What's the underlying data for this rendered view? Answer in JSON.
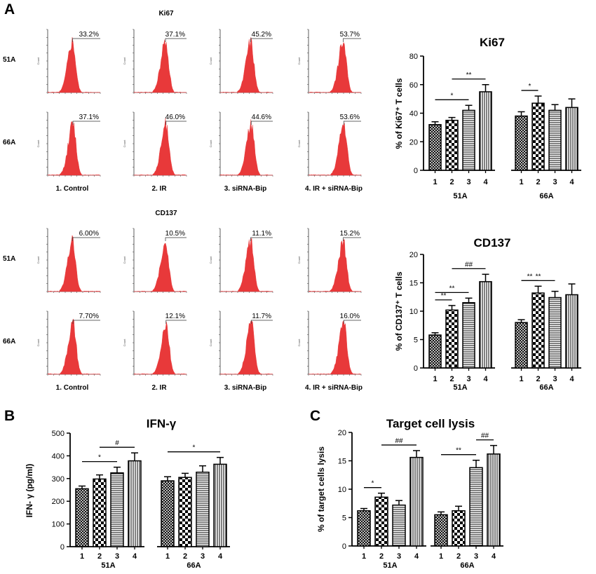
{
  "panel_labels": {
    "A": "A",
    "B": "B",
    "C": "C"
  },
  "histogram_panels": [
    {
      "title": "Ki67",
      "row_labels": [
        "51A",
        "66A"
      ],
      "column_labels": [
        "1. Control",
        "2. IR",
        "3. siRNA-Bip",
        "4. IR + siRNA-Bip"
      ],
      "percentages": [
        [
          "33.2%",
          "37.1%",
          "45.2%",
          "53.7%"
        ],
        [
          "37.1%",
          "46.0%",
          "44.6%",
          "53.6%"
        ]
      ],
      "axis_word": "Count"
    },
    {
      "title": "CD137",
      "row_labels": [
        "51A",
        "66A"
      ],
      "column_labels": [
        "1. Control",
        "2. IR",
        "3. siRNA-Bip",
        "4. IR + siRNA-Bip"
      ],
      "percentages": [
        [
          "6.00%",
          "10.5%",
          "11.1%",
          "15.2%"
        ],
        [
          "7.70%",
          "12.1%",
          "11.7%",
          "16.0%"
        ]
      ],
      "axis_word": "Count"
    }
  ],
  "histogram_color": "#e8393a",
  "chart_data": [
    {
      "id": "ki67",
      "type": "bar",
      "title": "Ki67",
      "ylabel": "% of  Ki67⁺ T cells",
      "xlabel": "",
      "ylim": [
        0,
        80
      ],
      "yticks": [
        0,
        20,
        40,
        60,
        80
      ],
      "groups": [
        {
          "label": "51A",
          "categories": [
            "1",
            "2",
            "3",
            "4"
          ],
          "values": [
            32,
            35,
            42,
            55
          ],
          "errors": [
            2,
            2,
            3.5,
            5
          ]
        },
        {
          "label": "66A",
          "categories": [
            "1",
            "2",
            "3",
            "4"
          ],
          "values": [
            38,
            47,
            42,
            44
          ],
          "errors": [
            3,
            5,
            4,
            6
          ]
        }
      ],
      "annotations": [
        {
          "text": "*",
          "group": 0,
          "from": 0,
          "to": 2
        },
        {
          "text": "**",
          "group": 0,
          "from": 1,
          "to": 3
        },
        {
          "text": "*",
          "group": 1,
          "from": 0,
          "to": 1
        }
      ]
    },
    {
      "id": "cd137",
      "type": "bar",
      "title": "CD137",
      "ylabel": "% of CD137⁺ T cells",
      "xlabel": "",
      "ylim": [
        0,
        20
      ],
      "yticks": [
        0,
        5,
        10,
        15,
        20
      ],
      "groups": [
        {
          "label": "51A",
          "categories": [
            "1",
            "2",
            "3",
            "4"
          ],
          "values": [
            5.8,
            10.2,
            11.5,
            15.2
          ],
          "errors": [
            0.4,
            0.8,
            0.8,
            1.3
          ]
        },
        {
          "label": "66A",
          "categories": [
            "1",
            "2",
            "3",
            "4"
          ],
          "values": [
            8.0,
            13.2,
            12.4,
            12.9
          ],
          "errors": [
            0.5,
            1.2,
            1.1,
            1.9
          ]
        }
      ],
      "annotations": [
        {
          "text": "**",
          "group": 0,
          "from": 0,
          "to": 1
        },
        {
          "text": "**",
          "group": 0,
          "from": 0,
          "to": 2
        },
        {
          "text": "##",
          "group": 0,
          "from": 1,
          "to": 3
        },
        {
          "text": "**",
          "group": 1,
          "from": 0,
          "to": 1
        },
        {
          "text": "**",
          "group": 1,
          "from": 0,
          "to": 2
        }
      ]
    },
    {
      "id": "ifng",
      "type": "bar",
      "title": "IFN-γ",
      "ylabel": "IFN- γ  (pg/ml)",
      "xlabel": "",
      "ylim": [
        0,
        500
      ],
      "yticks": [
        0,
        100,
        200,
        300,
        400,
        500
      ],
      "groups": [
        {
          "label": "51A",
          "categories": [
            "1",
            "2",
            "3",
            "4"
          ],
          "values": [
            255,
            298,
            325,
            378
          ],
          "errors": [
            12,
            18,
            25,
            35
          ]
        },
        {
          "label": "66A",
          "categories": [
            "1",
            "2",
            "3",
            "4"
          ],
          "values": [
            290,
            305,
            328,
            363
          ],
          "errors": [
            18,
            18,
            28,
            30
          ]
        }
      ],
      "annotations": [
        {
          "text": "*",
          "group": 0,
          "from": 0,
          "to": 2
        },
        {
          "text": "#",
          "group": 0,
          "from": 1,
          "to": 3
        },
        {
          "text": "*",
          "group": 1,
          "from": 0,
          "to": 3
        }
      ]
    },
    {
      "id": "lysis",
      "type": "bar",
      "title": "Target cell lysis",
      "ylabel": "% of target cells lysis",
      "xlabel": "",
      "ylim": [
        0,
        20
      ],
      "yticks": [
        0,
        5,
        10,
        15,
        20
      ],
      "groups": [
        {
          "label": "51A",
          "categories": [
            "1",
            "2",
            "3",
            "4"
          ],
          "values": [
            6.2,
            8.6,
            7.2,
            15.6
          ],
          "errors": [
            0.4,
            0.7,
            0.8,
            1.2
          ]
        },
        {
          "label": "66A",
          "categories": [
            "1",
            "2",
            "3",
            "4"
          ],
          "values": [
            5.5,
            6.2,
            13.8,
            16.2
          ],
          "errors": [
            0.5,
            0.8,
            1.3,
            1.5
          ]
        }
      ],
      "annotations": [
        {
          "text": "*",
          "group": 0,
          "from": 0,
          "to": 1
        },
        {
          "text": "##",
          "group": 0,
          "from": 1,
          "to": 3
        },
        {
          "text": "**",
          "group": 1,
          "from": 0,
          "to": 2
        },
        {
          "text": "##",
          "group": 1,
          "from": 2,
          "to": 3
        }
      ]
    }
  ],
  "bar_patterns": [
    "crosshatch",
    "checker",
    "horizontal-stripes",
    "vertical-stripes"
  ]
}
